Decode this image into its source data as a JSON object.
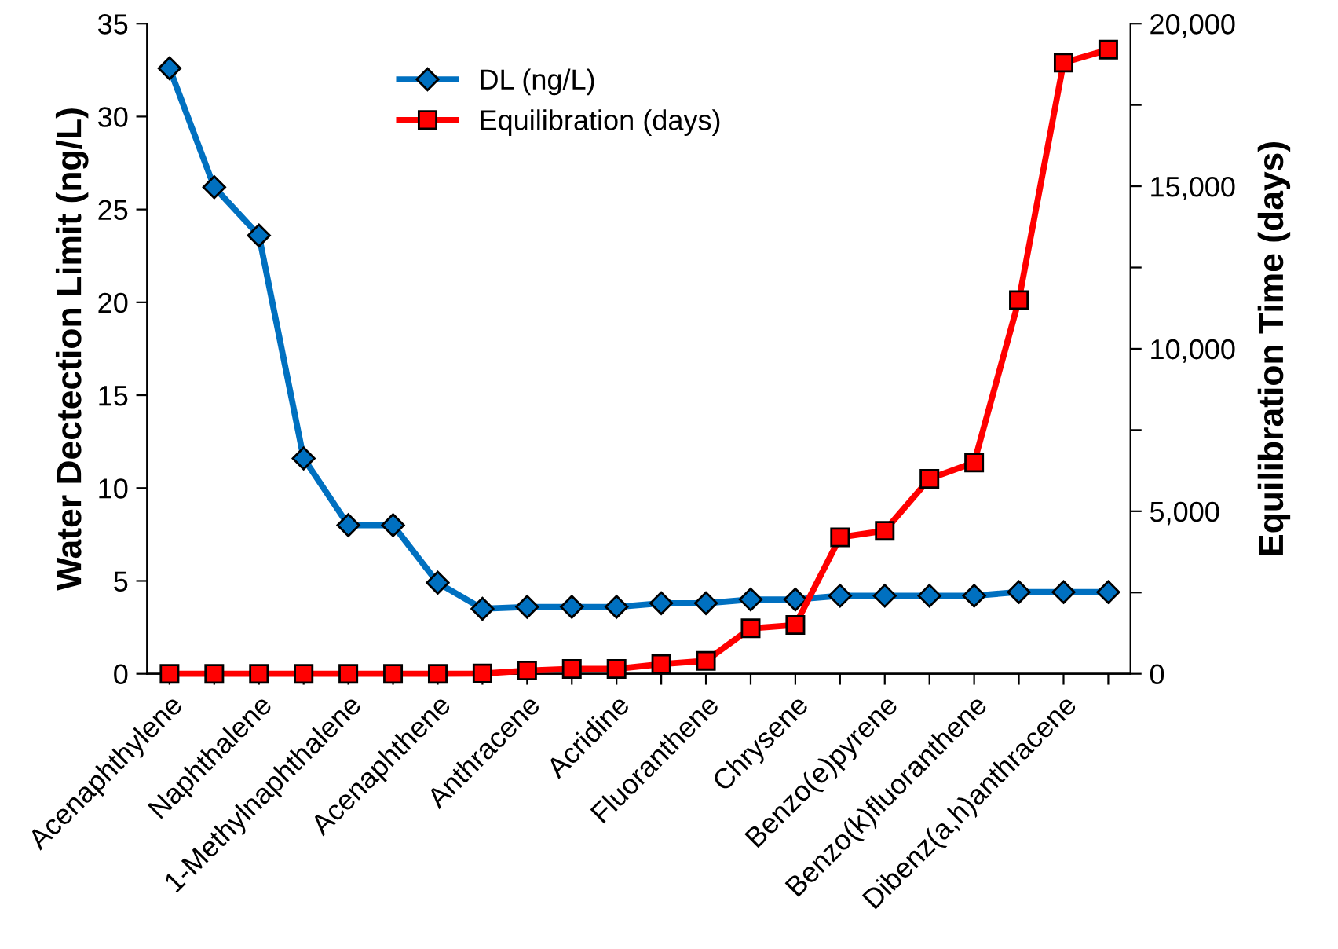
{
  "chart_data": {
    "type": "line",
    "ylabel": "Water Dectection Limit (ng/L)",
    "y2label": "Equilibration Time (days)",
    "categories": [
      "Acenaphthylene",
      null,
      "Naphthalene",
      null,
      "1-Methylnaphthalene",
      null,
      "Acenaphthene",
      null,
      "Anthracene",
      null,
      "Acridine",
      null,
      "Fluoranthene",
      null,
      "Chrysene",
      null,
      "Benzo(e)pyrene",
      null,
      "Benzo(k)fluoranthene",
      null,
      "Dibenz(a,h)anthracene",
      null
    ],
    "series": [
      {
        "name": "DL (ng/L)",
        "color": "#0070c0",
        "marker": "diamond",
        "values": [
          32.6,
          26.2,
          23.6,
          11.6,
          8.0,
          8.0,
          4.9,
          3.5,
          3.6,
          3.6,
          3.6,
          3.8,
          3.8,
          4.0,
          4.0,
          4.2,
          4.2,
          4.2,
          4.2,
          4.4,
          4.4,
          4.4
        ]
      },
      {
        "name": "Equilibration (days)",
        "color": "#ff0000",
        "marker": "square",
        "axis": "y2",
        "values": [
          0,
          0,
          0,
          0,
          0,
          0,
          0,
          10,
          100,
          150,
          150,
          300,
          400,
          1400,
          1500,
          4200,
          4400,
          6000,
          6500,
          11500,
          18800,
          19200
        ]
      }
    ],
    "ylim": [
      0,
      35
    ],
    "yticks": [
      0,
      5,
      10,
      15,
      20,
      25,
      30,
      35
    ],
    "y2lim": [
      0,
      20000
    ],
    "y2ticks": [
      {
        "value": 0,
        "label": "0"
      },
      {
        "value": 2500,
        "label": null
      },
      {
        "value": 5000,
        "label": "5,000"
      },
      {
        "value": 7500,
        "label": null
      },
      {
        "value": 10000,
        "label": "10,000"
      },
      {
        "value": 12500,
        "label": null
      },
      {
        "value": 15000,
        "label": "15,000"
      },
      {
        "value": 17500,
        "label": null
      },
      {
        "value": 20000,
        "label": "20,000"
      }
    ],
    "grid": false,
    "legend": "top",
    "line_style": "solid"
  }
}
